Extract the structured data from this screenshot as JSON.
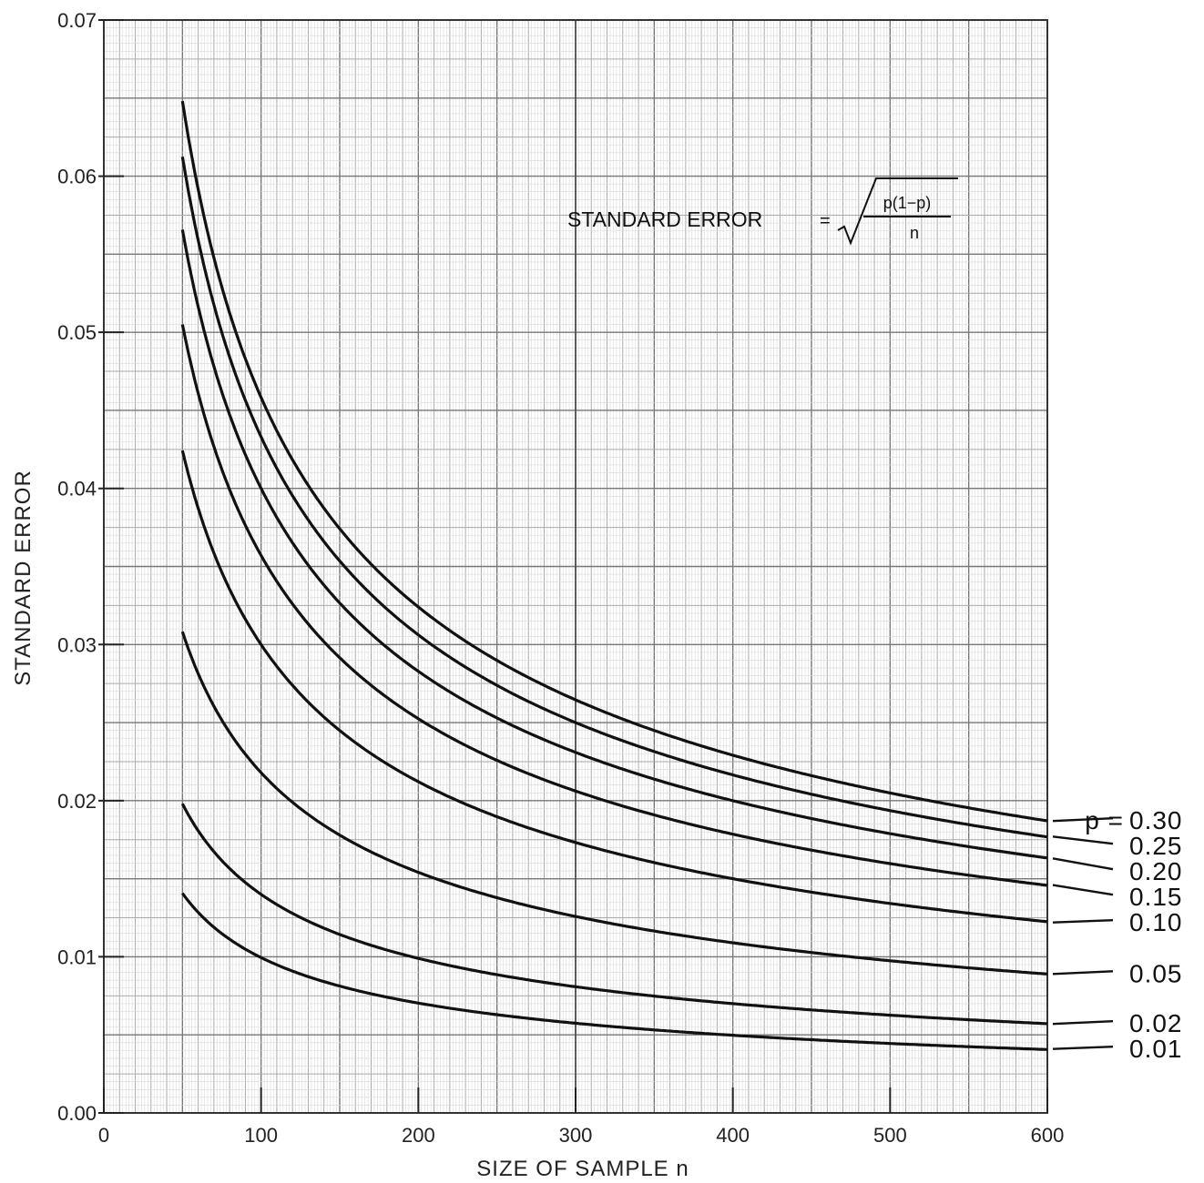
{
  "chart_data": {
    "type": "line",
    "ylabel": "STANDARD ERROR",
    "xlabel": "SIZE OF SAMPLE n",
    "xlim": [
      0,
      600
    ],
    "ylim": [
      0,
      0.07
    ],
    "x_ticks": [
      "0",
      "100",
      "200",
      "300",
      "400",
      "500",
      "600"
    ],
    "y_ticks": [
      "0.00",
      "0.01",
      "0.02",
      "0.03",
      "0.04",
      "0.05",
      "0.06",
      "0.07"
    ],
    "grid": true,
    "x": [
      50,
      100,
      150,
      200,
      250,
      300,
      350,
      400,
      450,
      500,
      550,
      600
    ],
    "series": [
      {
        "name": "p = 0.30",
        "p": 0.3,
        "values": [
          0.0648,
          0.0458,
          0.0374,
          0.0324,
          0.029,
          0.0265,
          0.0245,
          0.0229,
          0.0216,
          0.0205,
          0.0195,
          0.0187
        ]
      },
      {
        "name": "0.25",
        "p": 0.25,
        "values": [
          0.0612,
          0.0433,
          0.0354,
          0.0306,
          0.0274,
          0.025,
          0.0231,
          0.0217,
          0.0204,
          0.0194,
          0.0185,
          0.0177
        ]
      },
      {
        "name": "0.20",
        "p": 0.2,
        "values": [
          0.0566,
          0.04,
          0.0327,
          0.0283,
          0.0253,
          0.0231,
          0.0214,
          0.02,
          0.0189,
          0.0179,
          0.0171,
          0.0163
        ]
      },
      {
        "name": "0.15",
        "p": 0.15,
        "values": [
          0.0505,
          0.0357,
          0.0292,
          0.0252,
          0.0226,
          0.0206,
          0.0191,
          0.0179,
          0.0168,
          0.016,
          0.0152,
          0.0146
        ]
      },
      {
        "name": "0.10",
        "p": 0.1,
        "values": [
          0.0424,
          0.03,
          0.0245,
          0.0212,
          0.019,
          0.0173,
          0.016,
          0.015,
          0.0141,
          0.0134,
          0.0128,
          0.0122
        ]
      },
      {
        "name": "0.05",
        "p": 0.05,
        "values": [
          0.0308,
          0.0218,
          0.0178,
          0.0154,
          0.0138,
          0.0126,
          0.0116,
          0.0109,
          0.0103,
          0.0097,
          0.0093,
          0.0089
        ]
      },
      {
        "name": "0.02",
        "p": 0.02,
        "values": [
          0.0198,
          0.014,
          0.0114,
          0.0099,
          0.0089,
          0.0081,
          0.0075,
          0.007,
          0.0066,
          0.0063,
          0.006,
          0.0057
        ]
      },
      {
        "name": "0.01",
        "p": 0.01,
        "values": [
          0.0141,
          0.0099,
          0.0081,
          0.007,
          0.0063,
          0.0057,
          0.0053,
          0.005,
          0.0047,
          0.0044,
          0.0042,
          0.0041
        ]
      }
    ],
    "annotation": {
      "lhs": "STANDARD ERROR",
      "eq": "=",
      "numerator": "p(1−p)",
      "denominator": "n"
    },
    "label_prefix": "p ="
  }
}
